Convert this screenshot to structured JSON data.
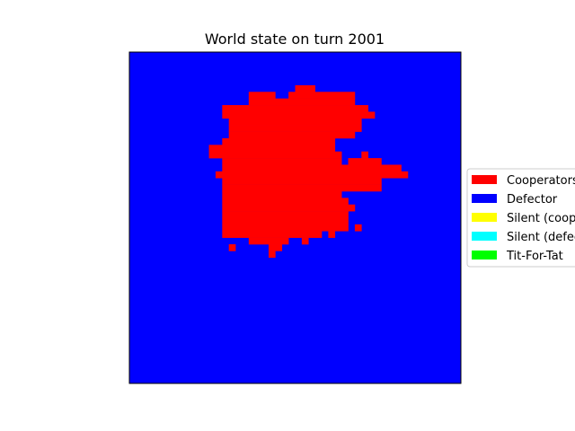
{
  "chart_data": {
    "type": "heatmap",
    "title": "World state on turn 2001",
    "xlabel": "",
    "ylabel": "",
    "grid": false,
    "axes_ticks": false,
    "grid_size": [
      50,
      50
    ],
    "background_category": "Defector",
    "legend_placement": "right, outside plot (clipped by figure edge)",
    "legend": [
      {
        "label": "Cooperators",
        "color": "#ff0000"
      },
      {
        "label": "Defector",
        "color": "#0000ff"
      },
      {
        "label": "Silent (cooperator)",
        "color": "#ffff00"
      },
      {
        "label": "Silent (defector)",
        "color": "#00ffff"
      },
      {
        "label": "Tit-For-Tat",
        "color": "#00ff00"
      }
    ],
    "cooperator_cells": [
      [
        5,
        [
          25,
          27
        ]
      ],
      [
        6,
        [
          18,
          21
        ],
        [
          24,
          33
        ]
      ],
      [
        7,
        [
          18,
          33
        ]
      ],
      [
        8,
        [
          14,
          35
        ]
      ],
      [
        9,
        [
          14,
          36
        ]
      ],
      [
        10,
        [
          15,
          34
        ]
      ],
      [
        11,
        [
          15,
          34
        ]
      ],
      [
        12,
        [
          15,
          32
        ],
        [
          33,
          33
        ]
      ],
      [
        13,
        [
          14,
          30
        ]
      ],
      [
        14,
        [
          12,
          30
        ]
      ],
      [
        15,
        [
          12,
          31
        ],
        [
          35,
          35
        ]
      ],
      [
        16,
        [
          14,
          31
        ],
        [
          33,
          37
        ]
      ],
      [
        17,
        [
          14,
          40
        ]
      ],
      [
        18,
        [
          13,
          41
        ]
      ],
      [
        19,
        [
          14,
          37
        ]
      ],
      [
        20,
        [
          14,
          37
        ]
      ],
      [
        21,
        [
          14,
          31
        ]
      ],
      [
        22,
        [
          14,
          32
        ]
      ],
      [
        23,
        [
          14,
          33
        ]
      ],
      [
        24,
        [
          14,
          32
        ]
      ],
      [
        25,
        [
          14,
          32
        ]
      ],
      [
        26,
        [
          14,
          32
        ],
        [
          34,
          34
        ]
      ],
      [
        27,
        [
          14,
          26
        ],
        [
          27,
          28
        ],
        [
          30,
          30
        ]
      ],
      [
        28,
        [
          18,
          23
        ],
        [
          26,
          26
        ]
      ],
      [
        29,
        [
          15,
          15
        ],
        [
          21,
          22
        ]
      ],
      [
        30,
        [
          21,
          21
        ]
      ]
    ]
  }
}
